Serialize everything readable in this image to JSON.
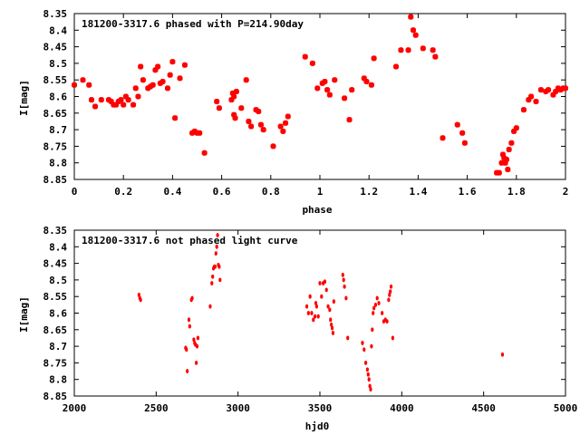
{
  "chart_data": [
    {
      "type": "scatter",
      "title": "181200-3317.6 phased with P=214.90day",
      "xlabel": "phase",
      "ylabel": "I[mag]",
      "xlim": [
        0,
        2
      ],
      "ylim": [
        8.35,
        8.85
      ],
      "y_inverted": true,
      "x_ticks": [
        "0",
        "0.2",
        "0.4",
        "0.6",
        "0.8",
        "1",
        "1.2",
        "1.4",
        "1.6",
        "1.8",
        "2"
      ],
      "y_ticks": [
        "8.35",
        "8.4",
        "8.45",
        "8.5",
        "8.55",
        "8.6",
        "8.65",
        "8.7",
        "8.75",
        "8.8",
        "8.85"
      ],
      "grid": false,
      "marker": "filled-square",
      "color": "#ff0000",
      "series": [
        {
          "points": [
            [
              0.0,
              8.565
            ],
            [
              0.035,
              8.55
            ],
            [
              0.06,
              8.565
            ],
            [
              0.07,
              8.61
            ],
            [
              0.085,
              8.63
            ],
            [
              0.11,
              8.61
            ],
            [
              0.14,
              8.61
            ],
            [
              0.15,
              8.615
            ],
            [
              0.16,
              8.625
            ],
            [
              0.17,
              8.625
            ],
            [
              0.18,
              8.615
            ],
            [
              0.19,
              8.61
            ],
            [
              0.2,
              8.625
            ],
            [
              0.21,
              8.6
            ],
            [
              0.22,
              8.61
            ],
            [
              0.24,
              8.625
            ],
            [
              0.25,
              8.575
            ],
            [
              0.26,
              8.6
            ],
            [
              0.27,
              8.51
            ],
            [
              0.28,
              8.55
            ],
            [
              0.3,
              8.575
            ],
            [
              0.31,
              8.57
            ],
            [
              0.32,
              8.565
            ],
            [
              0.33,
              8.52
            ],
            [
              0.34,
              8.51
            ],
            [
              0.35,
              8.56
            ],
            [
              0.36,
              8.555
            ],
            [
              0.38,
              8.575
            ],
            [
              0.39,
              8.535
            ],
            [
              0.4,
              8.495
            ],
            [
              0.41,
              8.665
            ],
            [
              0.43,
              8.545
            ],
            [
              0.45,
              8.505
            ],
            [
              0.48,
              8.71
            ],
            [
              0.49,
              8.705
            ],
            [
              0.5,
              8.71
            ],
            [
              0.51,
              8.71
            ],
            [
              0.53,
              8.77
            ],
            [
              0.58,
              8.615
            ],
            [
              0.59,
              8.635
            ],
            [
              0.64,
              8.61
            ],
            [
              0.645,
              8.59
            ],
            [
              0.65,
              8.6
            ],
            [
              0.65,
              8.655
            ],
            [
              0.655,
              8.665
            ],
            [
              0.66,
              8.585
            ],
            [
              0.68,
              8.635
            ],
            [
              0.7,
              8.55
            ],
            [
              0.71,
              8.675
            ],
            [
              0.72,
              8.69
            ],
            [
              0.74,
              8.64
            ],
            [
              0.75,
              8.645
            ],
            [
              0.76,
              8.685
            ],
            [
              0.77,
              8.7
            ],
            [
              0.81,
              8.75
            ],
            [
              0.84,
              8.69
            ],
            [
              0.85,
              8.705
            ],
            [
              0.86,
              8.68
            ],
            [
              0.87,
              8.66
            ],
            [
              0.94,
              8.48
            ],
            [
              0.97,
              8.5
            ],
            [
              0.99,
              8.575
            ],
            [
              1.01,
              8.56
            ],
            [
              1.02,
              8.555
            ],
            [
              1.03,
              8.58
            ],
            [
              1.04,
              8.595
            ],
            [
              1.06,
              8.55
            ],
            [
              1.1,
              8.605
            ],
            [
              1.12,
              8.67
            ],
            [
              1.13,
              8.58
            ],
            [
              1.18,
              8.545
            ],
            [
              1.19,
              8.555
            ],
            [
              1.21,
              8.565
            ],
            [
              1.22,
              8.485
            ],
            [
              1.31,
              8.51
            ],
            [
              1.33,
              8.46
            ],
            [
              1.36,
              8.46
            ],
            [
              1.37,
              8.36
            ],
            [
              1.38,
              8.4
            ],
            [
              1.39,
              8.415
            ],
            [
              1.42,
              8.455
            ],
            [
              1.46,
              8.46
            ],
            [
              1.47,
              8.48
            ],
            [
              1.5,
              8.725
            ],
            [
              1.56,
              8.685
            ],
            [
              1.58,
              8.71
            ],
            [
              1.59,
              8.74
            ],
            [
              1.72,
              8.83
            ],
            [
              1.73,
              8.83
            ],
            [
              1.74,
              8.8
            ],
            [
              1.745,
              8.775
            ],
            [
              1.75,
              8.785
            ],
            [
              1.755,
              8.8
            ],
            [
              1.76,
              8.79
            ],
            [
              1.765,
              8.82
            ],
            [
              1.77,
              8.76
            ],
            [
              1.78,
              8.74
            ],
            [
              1.79,
              8.705
            ],
            [
              1.8,
              8.695
            ],
            [
              1.83,
              8.64
            ],
            [
              1.85,
              8.61
            ],
            [
              1.86,
              8.6
            ],
            [
              1.88,
              8.615
            ],
            [
              1.9,
              8.58
            ],
            [
              1.92,
              8.585
            ],
            [
              1.93,
              8.58
            ],
            [
              1.95,
              8.595
            ],
            [
              1.96,
              8.585
            ],
            [
              1.97,
              8.575
            ],
            [
              1.98,
              8.58
            ],
            [
              1.99,
              8.575
            ],
            [
              2.0,
              8.575
            ]
          ]
        }
      ]
    },
    {
      "type": "scatter",
      "title": "181200-3317.6 not phased light curve",
      "xlabel": "hjd0",
      "ylabel": "I[mag]",
      "xlim": [
        2000,
        5000
      ],
      "ylim": [
        8.35,
        8.85
      ],
      "y_inverted": true,
      "x_ticks": [
        "2000",
        "2500",
        "3000",
        "3500",
        "4000",
        "4500",
        "5000"
      ],
      "y_ticks": [
        "8.35",
        "8.4",
        "8.45",
        "8.5",
        "8.55",
        "8.6",
        "8.65",
        "8.7",
        "8.75",
        "8.8",
        "8.85"
      ],
      "grid": false,
      "marker": "small-diamond",
      "color": "#ff0000",
      "series": [
        {
          "points": [
            [
              2395,
              8.545
            ],
            [
              2400,
              8.555
            ],
            [
              2405,
              8.56
            ],
            [
              2680,
              8.705
            ],
            [
              2685,
              8.71
            ],
            [
              2690,
              8.775
            ],
            [
              2700,
              8.62
            ],
            [
              2705,
              8.64
            ],
            [
              2715,
              8.56
            ],
            [
              2720,
              8.555
            ],
            [
              2730,
              8.68
            ],
            [
              2735,
              8.69
            ],
            [
              2740,
              8.695
            ],
            [
              2745,
              8.75
            ],
            [
              2750,
              8.7
            ],
            [
              2755,
              8.675
            ],
            [
              2830,
              8.58
            ],
            [
              2840,
              8.51
            ],
            [
              2845,
              8.49
            ],
            [
              2850,
              8.465
            ],
            [
              2855,
              8.46
            ],
            [
              2860,
              8.46
            ],
            [
              2865,
              8.42
            ],
            [
              2870,
              8.4
            ],
            [
              2875,
              8.365
            ],
            [
              2880,
              8.455
            ],
            [
              2885,
              8.46
            ],
            [
              2890,
              8.5
            ],
            [
              3420,
              8.58
            ],
            [
              3430,
              8.6
            ],
            [
              3440,
              8.55
            ],
            [
              3450,
              8.6
            ],
            [
              3460,
              8.62
            ],
            [
              3470,
              8.61
            ],
            [
              3475,
              8.57
            ],
            [
              3480,
              8.58
            ],
            [
              3490,
              8.61
            ],
            [
              3500,
              8.51
            ],
            [
              3510,
              8.55
            ],
            [
              3520,
              8.51
            ],
            [
              3530,
              8.505
            ],
            [
              3540,
              8.53
            ],
            [
              3550,
              8.58
            ],
            [
              3560,
              8.59
            ],
            [
              3565,
              8.62
            ],
            [
              3570,
              8.635
            ],
            [
              3575,
              8.645
            ],
            [
              3580,
              8.66
            ],
            [
              3585,
              8.565
            ],
            [
              3640,
              8.485
            ],
            [
              3645,
              8.5
            ],
            [
              3650,
              8.52
            ],
            [
              3660,
              8.555
            ],
            [
              3670,
              8.675
            ],
            [
              3760,
              8.69
            ],
            [
              3770,
              8.71
            ],
            [
              3780,
              8.75
            ],
            [
              3790,
              8.77
            ],
            [
              3795,
              8.785
            ],
            [
              3800,
              8.8
            ],
            [
              3805,
              8.82
            ],
            [
              3810,
              8.83
            ],
            [
              3815,
              8.7
            ],
            [
              3820,
              8.65
            ],
            [
              3825,
              8.6
            ],
            [
              3830,
              8.585
            ],
            [
              3840,
              8.575
            ],
            [
              3850,
              8.555
            ],
            [
              3860,
              8.57
            ],
            [
              3880,
              8.6
            ],
            [
              3890,
              8.625
            ],
            [
              3900,
              8.62
            ],
            [
              3910,
              8.625
            ],
            [
              3920,
              8.56
            ],
            [
              3925,
              8.545
            ],
            [
              3930,
              8.535
            ],
            [
              3935,
              8.52
            ],
            [
              3945,
              8.675
            ],
            [
              4615,
              8.725
            ]
          ]
        }
      ]
    }
  ]
}
